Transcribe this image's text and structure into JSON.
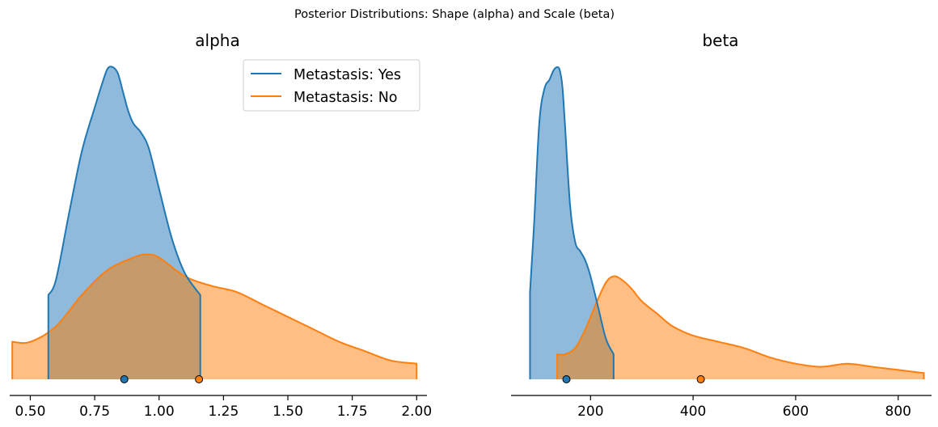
{
  "suptitle": "Posterior Distributions: Shape (alpha) and Scale (beta)",
  "colors": {
    "yes": "#1f77b4",
    "no": "#ff7f0e",
    "yes_fill": "#8fbadb",
    "no_fill": "#ffbe84",
    "overlap_fill": "#c59b6c"
  },
  "legend": {
    "placement": "top-right of alpha panel",
    "yes_label": "Metastasis: Yes",
    "no_label": "Metastasis: No"
  },
  "chart_data": [
    {
      "type": "area",
      "title": "alpha",
      "xlim": [
        0.42,
        2.04
      ],
      "xticks": [
        0.5,
        0.75,
        1.0,
        1.25,
        1.5,
        1.75,
        2.0
      ],
      "xtick_labels": [
        "0.50",
        "0.75",
        "1.00",
        "1.25",
        "1.50",
        "1.75",
        "2.00"
      ],
      "series": [
        {
          "name": "Metastasis: Yes",
          "hdi": [
            0.57,
            1.16
          ],
          "point_estimate": 0.865,
          "x": [
            0.57,
            0.6,
            0.65,
            0.7,
            0.75,
            0.78,
            0.8,
            0.82,
            0.84,
            0.86,
            0.88,
            0.9,
            0.93,
            0.96,
            1.0,
            1.05,
            1.1,
            1.16
          ],
          "density": [
            0.27,
            0.32,
            0.53,
            0.73,
            0.87,
            0.95,
            0.995,
            1.0,
            0.98,
            0.92,
            0.86,
            0.82,
            0.79,
            0.74,
            0.61,
            0.45,
            0.34,
            0.27
          ]
        },
        {
          "name": "Metastasis: No",
          "hdi": [
            0.43,
            2.0
          ],
          "point_estimate": 1.155,
          "x": [
            0.43,
            0.5,
            0.6,
            0.7,
            0.8,
            0.9,
            0.95,
            1.0,
            1.1,
            1.2,
            1.3,
            1.4,
            1.5,
            1.6,
            1.7,
            1.8,
            1.9,
            2.0
          ],
          "density": [
            0.12,
            0.12,
            0.17,
            0.27,
            0.35,
            0.39,
            0.4,
            0.39,
            0.33,
            0.3,
            0.28,
            0.24,
            0.2,
            0.16,
            0.12,
            0.09,
            0.06,
            0.05
          ]
        }
      ]
    },
    {
      "type": "area",
      "title": "beta",
      "xlim": [
        45,
        865
      ],
      "xticks": [
        200,
        400,
        600,
        800
      ],
      "xtick_labels": [
        "200",
        "400",
        "600",
        "800"
      ],
      "series": [
        {
          "name": "Metastasis: Yes",
          "hdi": [
            82,
            245
          ],
          "point_estimate": 153,
          "x": [
            82,
            90,
            100,
            110,
            120,
            128,
            135,
            140,
            145,
            150,
            160,
            170,
            180,
            190,
            200,
            215,
            230,
            245
          ],
          "density": [
            0.28,
            0.5,
            0.82,
            0.93,
            0.96,
            0.99,
            1.0,
            0.99,
            0.94,
            0.82,
            0.56,
            0.44,
            0.41,
            0.38,
            0.33,
            0.23,
            0.13,
            0.08
          ]
        },
        {
          "name": "Metastasis: No",
          "hdi": [
            135,
            850
          ],
          "point_estimate": 415,
          "x": [
            135,
            150,
            170,
            190,
            210,
            230,
            245,
            260,
            280,
            300,
            330,
            360,
            400,
            450,
            500,
            550,
            600,
            650,
            700,
            750,
            800,
            850
          ],
          "density": [
            0.08,
            0.08,
            0.1,
            0.16,
            0.24,
            0.31,
            0.33,
            0.32,
            0.29,
            0.25,
            0.21,
            0.17,
            0.14,
            0.12,
            0.1,
            0.07,
            0.05,
            0.04,
            0.05,
            0.04,
            0.03,
            0.02
          ]
        }
      ]
    }
  ]
}
